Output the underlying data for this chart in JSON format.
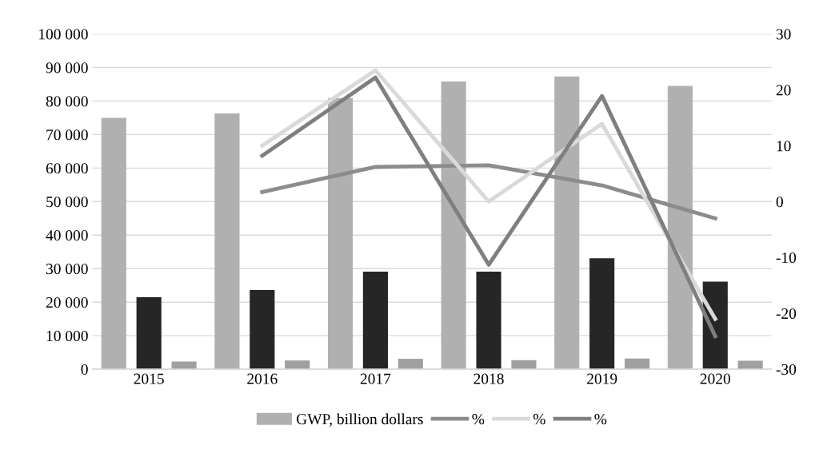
{
  "chart_data": {
    "type": "bar",
    "categories": [
      "2015",
      "2016",
      "2017",
      "2018",
      "2019",
      "2020"
    ],
    "series": [
      {
        "name": "GWP, billion dollars",
        "color": "#b0b0b0",
        "values": [
          75000,
          76300,
          80900,
          85800,
          87300,
          84500
        ]
      },
      {
        "color": "#262626",
        "values": [
          21500,
          23600,
          29100,
          29100,
          33100,
          26100
        ]
      },
      {
        "color": "#a0a0a0",
        "values": [
          2300,
          2600,
          3100,
          2700,
          3200,
          2500
        ]
      },
      {
        "name": "%",
        "type": "line",
        "axis": "y2",
        "color": "#8c8c8c",
        "values": [
          null,
          1.7,
          6.2,
          6.5,
          2.9,
          -3.0
        ]
      },
      {
        "name": "%",
        "type": "line",
        "axis": "y2",
        "color": "#d9d9d9",
        "values": [
          null,
          10.0,
          23.5,
          0.0,
          13.9,
          -21.0
        ]
      },
      {
        "name": "%",
        "type": "line",
        "axis": "y2",
        "color": "#7f7f7f",
        "values": [
          null,
          8.2,
          22.2,
          -11.3,
          18.9,
          -24.1
        ]
      }
    ],
    "ylim": [
      0,
      100000
    ],
    "yticks": [
      0,
      {
        "value": 10000,
        "label": "10 000"
      },
      {
        "value": 20000,
        "label": "20 000"
      },
      {
        "value": 30000,
        "label": "30 000"
      },
      {
        "value": 40000,
        "label": "40 000"
      },
      {
        "value": 50000,
        "label": "50 000"
      },
      {
        "value": 60000,
        "label": "60 000"
      },
      {
        "value": 70000,
        "label": "70 000"
      },
      {
        "value": 80000,
        "label": "80 000"
      },
      {
        "value": 90000,
        "label": "90 000"
      },
      {
        "value": 100000,
        "label": "100 000"
      }
    ],
    "y2lim": [
      -30,
      30
    ],
    "y2ticks": [
      -30,
      -20,
      -10,
      0,
      10,
      20,
      30
    ],
    "grid": "y",
    "legend": "bottom",
    "line_style": "solid",
    "marker": "none"
  }
}
